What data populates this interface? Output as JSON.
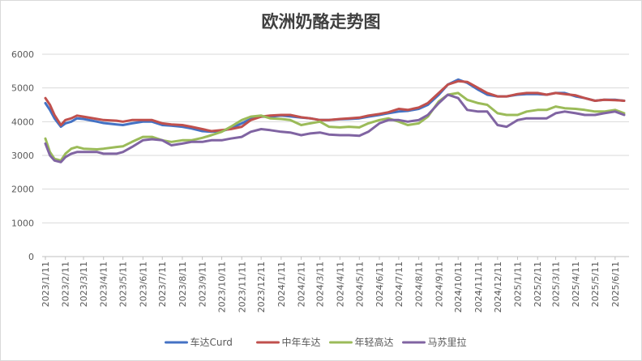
{
  "chart_data": {
    "type": "line",
    "title": "欧洲奶酪走势图",
    "xlabel": "",
    "ylabel": "",
    "ylim": [
      0,
      6000
    ],
    "yticks": [
      0,
      1000,
      2000,
      3000,
      4000,
      5000,
      6000
    ],
    "ytick_labels": [
      "0",
      "1000",
      "2000",
      "3000",
      "4000",
      "5000",
      "6000"
    ],
    "grid": "horizontal",
    "legend_position": "bottom",
    "x_tick_labels": [
      "2023/1/11",
      "2023/2/11",
      "2023/3/11",
      "2023/4/11",
      "2023/5/11",
      "2023/6/11",
      "2023/7/11",
      "2023/8/11",
      "2023/9/11",
      "2023/10/11",
      "2023/11/11",
      "2023/12/11",
      "2024/1/11",
      "2024/2/11",
      "2024/3/11",
      "2024/4/11",
      "2024/5/11",
      "2024/6/11",
      "2024/7/11",
      "2024/8/11",
      "2024/9/11",
      "2024/10/11",
      "2024/11/11",
      "2024/12/11",
      "2025/1/11",
      "2025/2/11",
      "2025/3/11",
      "2025/4/11",
      "2025/5/11",
      "2025/6/11"
    ],
    "x_range": [
      "2023/1/11",
      "2025/6/25"
    ],
    "series": [
      {
        "name": "车达Curd",
        "color": "#4472c4",
        "points": [
          [
            "2023/1/11",
            4550
          ],
          [
            "2023/1/18",
            4350
          ],
          [
            "2023/1/25",
            4100
          ],
          [
            "2023/2/4",
            3850
          ],
          [
            "2023/2/11",
            3950
          ],
          [
            "2023/2/20",
            4000
          ],
          [
            "2023/3/1",
            4100
          ],
          [
            "2023/3/11",
            4080
          ],
          [
            "2023/4/1",
            4000
          ],
          [
            "2023/4/11",
            3960
          ],
          [
            "2023/5/1",
            3920
          ],
          [
            "2023/5/11",
            3900
          ],
          [
            "2023/5/25",
            3950
          ],
          [
            "2023/6/11",
            4000
          ],
          [
            "2023/6/25",
            4000
          ],
          [
            "2023/7/11",
            3900
          ],
          [
            "2023/7/25",
            3880
          ],
          [
            "2023/8/11",
            3850
          ],
          [
            "2023/8/25",
            3800
          ],
          [
            "2023/9/11",
            3720
          ],
          [
            "2023/9/25",
            3700
          ],
          [
            "2023/10/11",
            3720
          ],
          [
            "2023/10/25",
            3800
          ],
          [
            "2023/11/11",
            3950
          ],
          [
            "2023/11/25",
            4080
          ],
          [
            "2023/12/11",
            4150
          ],
          [
            "2023/12/25",
            4150
          ],
          [
            "2024/1/11",
            4180
          ],
          [
            "2024/1/25",
            4160
          ],
          [
            "2024/2/11",
            4120
          ],
          [
            "2024/2/25",
            4100
          ],
          [
            "2024/3/11",
            4050
          ],
          [
            "2024/3/25",
            4050
          ],
          [
            "2024/4/11",
            4070
          ],
          [
            "2024/4/25",
            4080
          ],
          [
            "2024/5/11",
            4100
          ],
          [
            "2024/5/25",
            4150
          ],
          [
            "2024/6/11",
            4200
          ],
          [
            "2024/6/25",
            4250
          ],
          [
            "2024/7/11",
            4300
          ],
          [
            "2024/7/25",
            4320
          ],
          [
            "2024/8/11",
            4380
          ],
          [
            "2024/8/25",
            4500
          ],
          [
            "2024/9/11",
            4800
          ],
          [
            "2024/9/25",
            5100
          ],
          [
            "2024/10/11",
            5250
          ],
          [
            "2024/10/25",
            5150
          ],
          [
            "2024/11/11",
            4950
          ],
          [
            "2024/11/25",
            4800
          ],
          [
            "2024/12/11",
            4750
          ],
          [
            "2024/12/25",
            4750
          ],
          [
            "2025/1/11",
            4800
          ],
          [
            "2025/1/25",
            4820
          ],
          [
            "2025/2/11",
            4820
          ],
          [
            "2025/2/25",
            4800
          ],
          [
            "2025/3/11",
            4850
          ],
          [
            "2025/3/25",
            4850
          ],
          [
            "2025/4/11",
            4750
          ],
          [
            "2025/4/25",
            4700
          ],
          [
            "2025/5/11",
            4620
          ],
          [
            "2025/5/25",
            4650
          ],
          [
            "2025/6/11",
            4650
          ],
          [
            "2025/6/25",
            4620
          ]
        ]
      },
      {
        "name": "中年车达",
        "color": "#c0504d",
        "points": [
          [
            "2023/1/11",
            4700
          ],
          [
            "2023/1/18",
            4500
          ],
          [
            "2023/1/25",
            4200
          ],
          [
            "2023/2/4",
            3900
          ],
          [
            "2023/2/11",
            4050
          ],
          [
            "2023/2/20",
            4100
          ],
          [
            "2023/3/1",
            4180
          ],
          [
            "2023/3/11",
            4150
          ],
          [
            "2023/4/1",
            4080
          ],
          [
            "2023/4/11",
            4050
          ],
          [
            "2023/5/1",
            4030
          ],
          [
            "2023/5/11",
            4000
          ],
          [
            "2023/5/25",
            4050
          ],
          [
            "2023/6/11",
            4050
          ],
          [
            "2023/6/25",
            4050
          ],
          [
            "2023/7/11",
            3950
          ],
          [
            "2023/7/25",
            3920
          ],
          [
            "2023/8/11",
            3900
          ],
          [
            "2023/8/25",
            3850
          ],
          [
            "2023/9/11",
            3780
          ],
          [
            "2023/9/25",
            3720
          ],
          [
            "2023/10/11",
            3750
          ],
          [
            "2023/10/25",
            3780
          ],
          [
            "2023/11/11",
            3850
          ],
          [
            "2023/11/25",
            4050
          ],
          [
            "2023/12/11",
            4150
          ],
          [
            "2023/12/25",
            4180
          ],
          [
            "2024/1/11",
            4200
          ],
          [
            "2024/1/25",
            4200
          ],
          [
            "2024/2/11",
            4130
          ],
          [
            "2024/2/25",
            4100
          ],
          [
            "2024/3/11",
            4050
          ],
          [
            "2024/3/25",
            4050
          ],
          [
            "2024/4/11",
            4080
          ],
          [
            "2024/4/25",
            4100
          ],
          [
            "2024/5/11",
            4120
          ],
          [
            "2024/5/25",
            4180
          ],
          [
            "2024/6/11",
            4230
          ],
          [
            "2024/6/25",
            4280
          ],
          [
            "2024/7/11",
            4380
          ],
          [
            "2024/7/25",
            4350
          ],
          [
            "2024/8/11",
            4420
          ],
          [
            "2024/8/25",
            4550
          ],
          [
            "2024/9/11",
            4850
          ],
          [
            "2024/9/25",
            5100
          ],
          [
            "2024/10/11",
            5200
          ],
          [
            "2024/10/25",
            5180
          ],
          [
            "2024/11/11",
            5000
          ],
          [
            "2024/11/25",
            4850
          ],
          [
            "2024/12/11",
            4750
          ],
          [
            "2024/12/25",
            4750
          ],
          [
            "2025/1/11",
            4820
          ],
          [
            "2025/1/25",
            4850
          ],
          [
            "2025/2/11",
            4850
          ],
          [
            "2025/2/25",
            4800
          ],
          [
            "2025/3/11",
            4850
          ],
          [
            "2025/3/25",
            4820
          ],
          [
            "2025/4/11",
            4780
          ],
          [
            "2025/4/25",
            4700
          ],
          [
            "2025/5/11",
            4620
          ],
          [
            "2025/5/25",
            4650
          ],
          [
            "2025/6/11",
            4640
          ],
          [
            "2025/6/25",
            4620
          ]
        ]
      },
      {
        "name": "年轻高达",
        "color": "#9bbb59",
        "points": [
          [
            "2023/1/11",
            3500
          ],
          [
            "2023/1/18",
            3100
          ],
          [
            "2023/1/25",
            2900
          ],
          [
            "2023/2/4",
            2850
          ],
          [
            "2023/2/11",
            3050
          ],
          [
            "2023/2/20",
            3200
          ],
          [
            "2023/3/1",
            3250
          ],
          [
            "2023/3/11",
            3200
          ],
          [
            "2023/4/1",
            3180
          ],
          [
            "2023/4/11",
            3200
          ],
          [
            "2023/5/1",
            3250
          ],
          [
            "2023/5/11",
            3270
          ],
          [
            "2023/5/25",
            3400
          ],
          [
            "2023/6/11",
            3550
          ],
          [
            "2023/6/25",
            3550
          ],
          [
            "2023/7/11",
            3450
          ],
          [
            "2023/7/25",
            3400
          ],
          [
            "2023/8/11",
            3450
          ],
          [
            "2023/8/25",
            3450
          ],
          [
            "2023/9/11",
            3520
          ],
          [
            "2023/9/25",
            3600
          ],
          [
            "2023/10/11",
            3700
          ],
          [
            "2023/10/25",
            3850
          ],
          [
            "2023/11/11",
            4050
          ],
          [
            "2023/11/25",
            4150
          ],
          [
            "2023/12/11",
            4180
          ],
          [
            "2023/12/25",
            4100
          ],
          [
            "2024/1/11",
            4080
          ],
          [
            "2024/1/25",
            4050
          ],
          [
            "2024/2/11",
            3900
          ],
          [
            "2024/2/25",
            3950
          ],
          [
            "2024/3/11",
            4000
          ],
          [
            "2024/3/25",
            3850
          ],
          [
            "2024/4/11",
            3830
          ],
          [
            "2024/4/25",
            3850
          ],
          [
            "2024/5/11",
            3830
          ],
          [
            "2024/5/25",
            3950
          ],
          [
            "2024/6/11",
            4050
          ],
          [
            "2024/6/25",
            4100
          ],
          [
            "2024/7/11",
            4000
          ],
          [
            "2024/7/25",
            3900
          ],
          [
            "2024/8/11",
            3950
          ],
          [
            "2024/8/25",
            4150
          ],
          [
            "2024/9/11",
            4600
          ],
          [
            "2024/9/25",
            4800
          ],
          [
            "2024/10/11",
            4850
          ],
          [
            "2024/10/25",
            4650
          ],
          [
            "2024/11/11",
            4550
          ],
          [
            "2024/11/25",
            4500
          ],
          [
            "2024/12/11",
            4250
          ],
          [
            "2024/12/25",
            4200
          ],
          [
            "2025/1/11",
            4200
          ],
          [
            "2025/1/25",
            4300
          ],
          [
            "2025/2/11",
            4350
          ],
          [
            "2025/2/25",
            4350
          ],
          [
            "2025/3/11",
            4450
          ],
          [
            "2025/3/25",
            4400
          ],
          [
            "2025/4/11",
            4380
          ],
          [
            "2025/4/25",
            4350
          ],
          [
            "2025/5/11",
            4300
          ],
          [
            "2025/5/25",
            4300
          ],
          [
            "2025/6/11",
            4350
          ],
          [
            "2025/6/25",
            4250
          ]
        ]
      },
      {
        "name": "马苏里拉",
        "color": "#8064a2",
        "points": [
          [
            "2023/1/11",
            3350
          ],
          [
            "2023/1/18",
            3000
          ],
          [
            "2023/1/25",
            2850
          ],
          [
            "2023/2/4",
            2800
          ],
          [
            "2023/2/11",
            2950
          ],
          [
            "2023/2/20",
            3050
          ],
          [
            "2023/3/1",
            3100
          ],
          [
            "2023/3/11",
            3100
          ],
          [
            "2023/4/1",
            3100
          ],
          [
            "2023/4/11",
            3050
          ],
          [
            "2023/5/1",
            3050
          ],
          [
            "2023/5/11",
            3100
          ],
          [
            "2023/5/25",
            3250
          ],
          [
            "2023/6/11",
            3450
          ],
          [
            "2023/6/25",
            3480
          ],
          [
            "2023/7/11",
            3450
          ],
          [
            "2023/7/25",
            3300
          ],
          [
            "2023/8/11",
            3350
          ],
          [
            "2023/8/25",
            3400
          ],
          [
            "2023/9/11",
            3400
          ],
          [
            "2023/9/25",
            3450
          ],
          [
            "2023/10/11",
            3450
          ],
          [
            "2023/10/25",
            3500
          ],
          [
            "2023/11/11",
            3550
          ],
          [
            "2023/11/25",
            3700
          ],
          [
            "2023/12/11",
            3780
          ],
          [
            "2023/12/25",
            3750
          ],
          [
            "2024/1/11",
            3700
          ],
          [
            "2024/1/25",
            3680
          ],
          [
            "2024/2/11",
            3600
          ],
          [
            "2024/2/25",
            3650
          ],
          [
            "2024/3/11",
            3680
          ],
          [
            "2024/3/25",
            3620
          ],
          [
            "2024/4/11",
            3600
          ],
          [
            "2024/4/25",
            3600
          ],
          [
            "2024/5/11",
            3580
          ],
          [
            "2024/5/25",
            3700
          ],
          [
            "2024/6/11",
            3950
          ],
          [
            "2024/6/25",
            4050
          ],
          [
            "2024/7/11",
            4050
          ],
          [
            "2024/7/25",
            4000
          ],
          [
            "2024/8/11",
            4050
          ],
          [
            "2024/8/25",
            4200
          ],
          [
            "2024/9/11",
            4550
          ],
          [
            "2024/9/25",
            4800
          ],
          [
            "2024/10/11",
            4700
          ],
          [
            "2024/10/25",
            4350
          ],
          [
            "2024/11/11",
            4300
          ],
          [
            "2024/11/25",
            4300
          ],
          [
            "2024/12/11",
            3900
          ],
          [
            "2024/12/25",
            3850
          ],
          [
            "2025/1/11",
            4050
          ],
          [
            "2025/1/25",
            4100
          ],
          [
            "2025/2/11",
            4100
          ],
          [
            "2025/2/25",
            4100
          ],
          [
            "2025/3/11",
            4250
          ],
          [
            "2025/3/25",
            4300
          ],
          [
            "2025/4/11",
            4250
          ],
          [
            "2025/4/25",
            4200
          ],
          [
            "2025/5/11",
            4200
          ],
          [
            "2025/5/25",
            4250
          ],
          [
            "2025/6/11",
            4300
          ],
          [
            "2025/6/25",
            4200
          ]
        ]
      }
    ]
  }
}
